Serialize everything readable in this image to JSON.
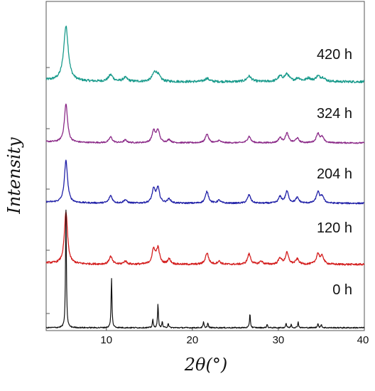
{
  "chart_data": {
    "type": "line",
    "xlabel": "2θ(°)",
    "ylabel": "Intensity",
    "xlim": [
      3,
      40
    ],
    "x_ticks": [
      "10",
      "20",
      "30",
      "40"
    ],
    "y_tick_labels": false,
    "grid": false,
    "legend": "none",
    "layout": "stacked offset traces with labels at right",
    "series": [
      {
        "name": "420 h",
        "color": "#1a9b8c",
        "peaks": [
          [
            5.3,
            100
          ],
          [
            10.5,
            12
          ],
          [
            12.2,
            7
          ],
          [
            15.6,
            15
          ],
          [
            16.0,
            10
          ],
          [
            21.7,
            6
          ],
          [
            26.6,
            10
          ],
          [
            30.2,
            9
          ],
          [
            31.0,
            13
          ],
          [
            32.3,
            6
          ],
          [
            33.5,
            6
          ],
          [
            34.6,
            9
          ],
          [
            35.2,
            6
          ]
        ]
      },
      {
        "name": "324 h",
        "color": "#8b2a88",
        "peaks": [
          [
            5.3,
            100
          ],
          [
            10.5,
            15
          ],
          [
            12.2,
            7
          ],
          [
            15.5,
            30
          ],
          [
            16.0,
            32
          ],
          [
            17.3,
            8
          ],
          [
            21.7,
            23
          ],
          [
            23.1,
            6
          ],
          [
            26.6,
            17
          ],
          [
            30.2,
            13
          ],
          [
            31.0,
            25
          ],
          [
            32.2,
            12
          ],
          [
            34.6,
            24
          ],
          [
            35.1,
            14
          ]
        ]
      },
      {
        "name": "204 h",
        "color": "#2222a8",
        "peaks": [
          [
            5.3,
            100
          ],
          [
            10.5,
            18
          ],
          [
            12.2,
            8
          ],
          [
            15.5,
            32
          ],
          [
            16.0,
            35
          ],
          [
            17.3,
            10
          ],
          [
            21.7,
            28
          ],
          [
            23.1,
            7
          ],
          [
            26.6,
            20
          ],
          [
            30.2,
            15
          ],
          [
            31.0,
            28
          ],
          [
            32.2,
            13
          ],
          [
            34.6,
            26
          ],
          [
            35.1,
            16
          ]
        ]
      },
      {
        "name": "120 h",
        "color": "#d42020",
        "peaks": [
          [
            5.3,
            100
          ],
          [
            10.5,
            15
          ],
          [
            12.2,
            6
          ],
          [
            15.5,
            28
          ],
          [
            16.0,
            30
          ],
          [
            17.3,
            10
          ],
          [
            21.7,
            22
          ],
          [
            23.1,
            6
          ],
          [
            26.6,
            20
          ],
          [
            28.0,
            6
          ],
          [
            30.2,
            12
          ],
          [
            31.0,
            22
          ],
          [
            32.2,
            10
          ],
          [
            34.6,
            20
          ],
          [
            35.1,
            15
          ]
        ]
      },
      {
        "name": "0 h",
        "color": "#111111",
        "peaks": [
          [
            5.3,
            100
          ],
          [
            10.6,
            42
          ],
          [
            15.4,
            7
          ],
          [
            16.0,
            20
          ],
          [
            16.5,
            5
          ],
          [
            17.2,
            4
          ],
          [
            21.3,
            5
          ],
          [
            21.8,
            4
          ],
          [
            26.7,
            12
          ],
          [
            28.7,
            3
          ],
          [
            30.9,
            4
          ],
          [
            31.5,
            3
          ],
          [
            32.3,
            5
          ],
          [
            34.6,
            4
          ],
          [
            35.0,
            3
          ]
        ]
      }
    ]
  }
}
